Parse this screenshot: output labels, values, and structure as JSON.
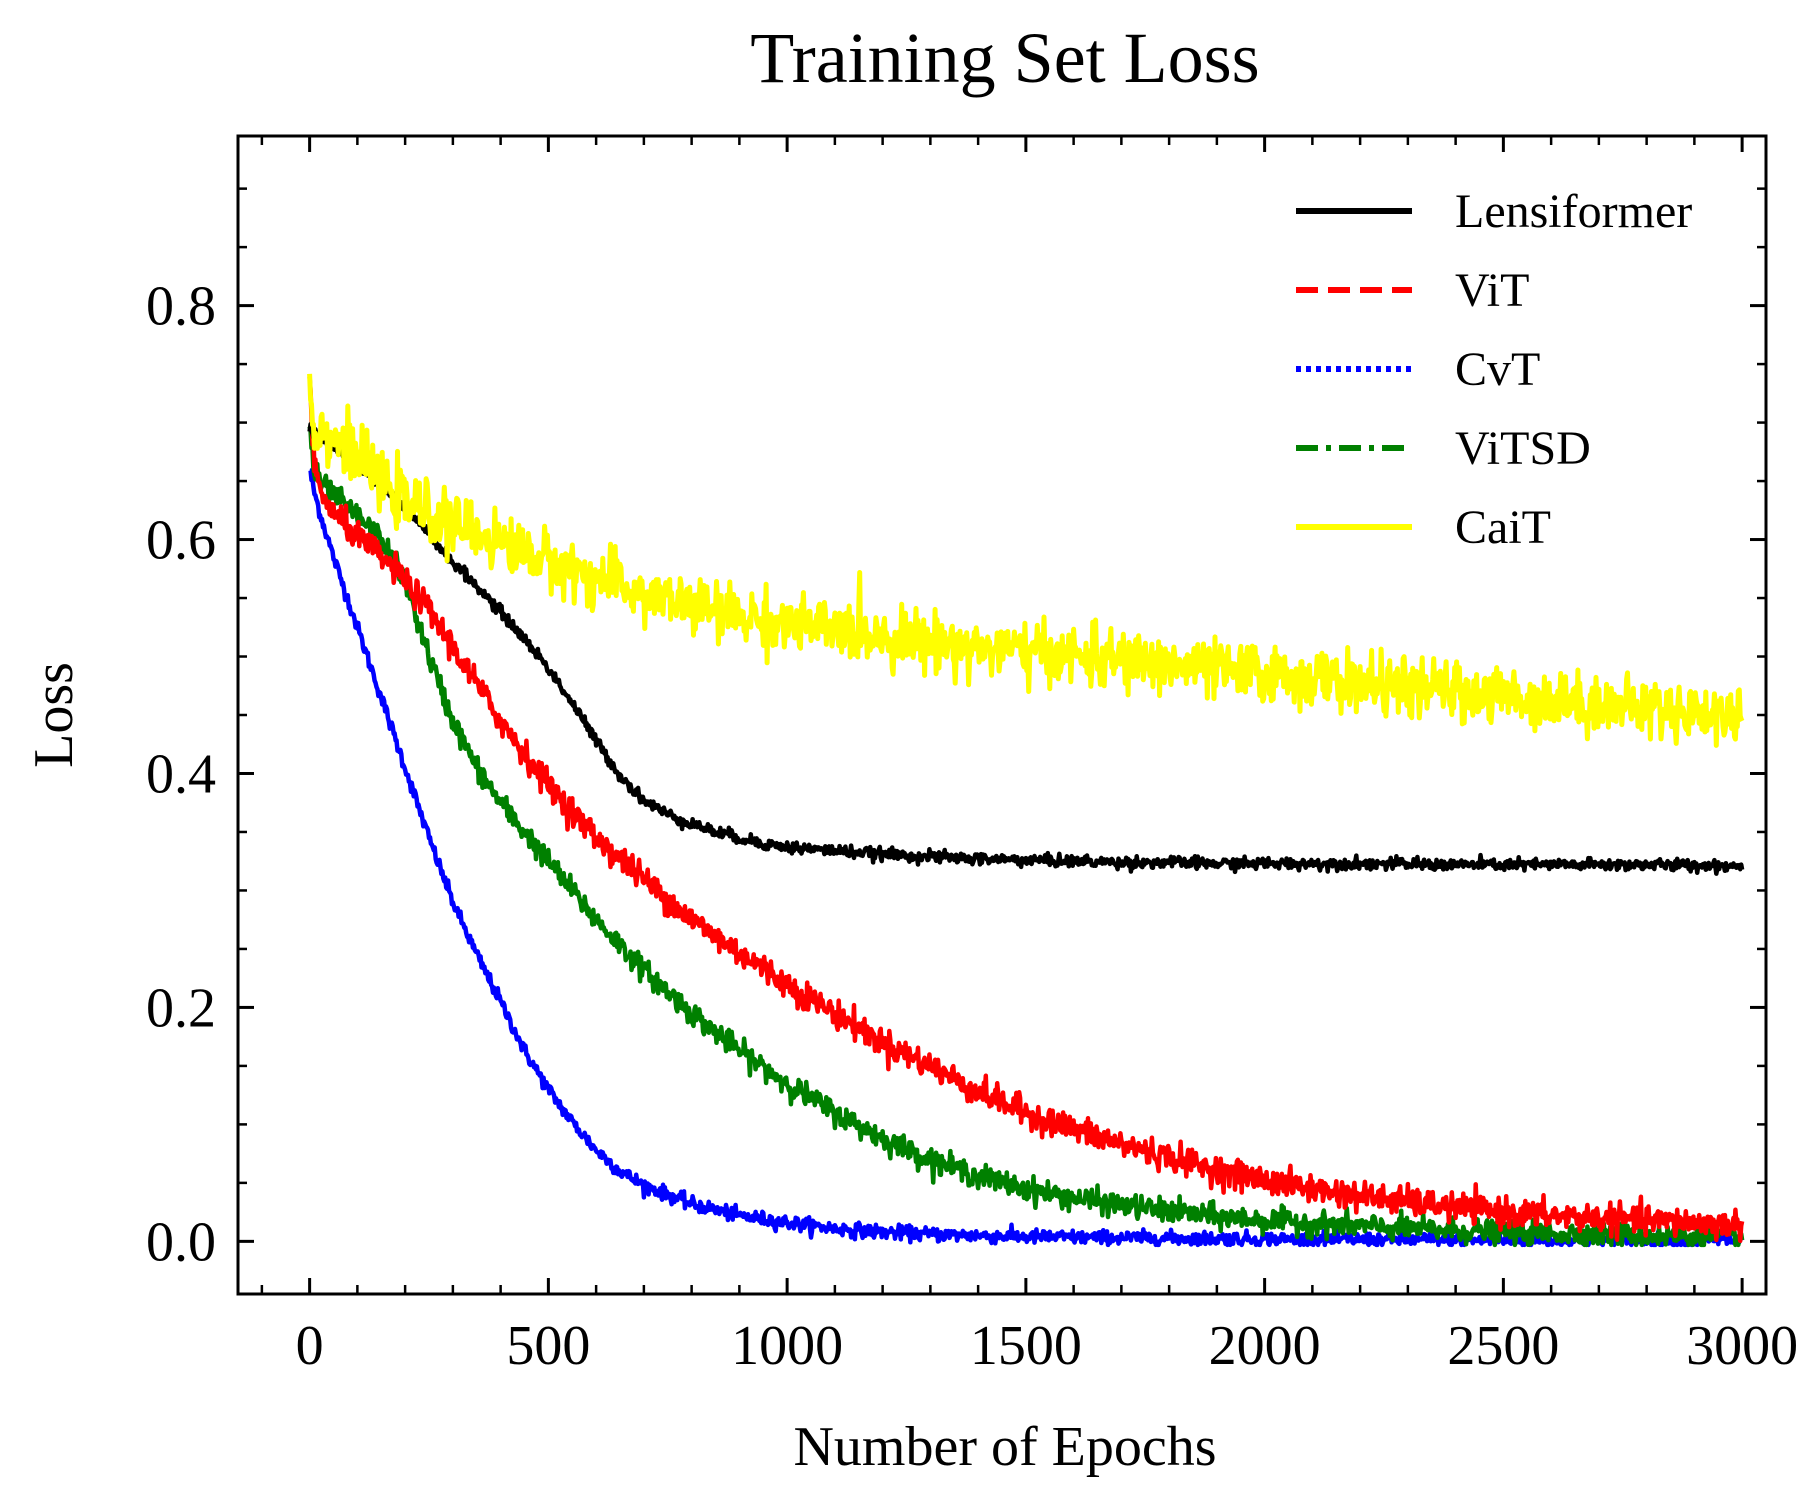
{
  "chart_data": {
    "type": "line",
    "title": "Training Set Loss",
    "xlabel": "Number of Epochs",
    "ylabel": "Loss",
    "xlim": [
      -150,
      3050
    ],
    "ylim": [
      -0.045,
      0.945
    ],
    "xticks": [
      0,
      500,
      1000,
      1500,
      2000,
      2500,
      3000
    ],
    "xtick_labels": [
      "0",
      "500",
      "1000",
      "1500",
      "2000",
      "2500",
      "3000"
    ],
    "yticks": [
      0.0,
      0.2,
      0.4,
      0.6,
      0.8
    ],
    "ytick_labels": [
      "0.0",
      "0.2",
      "0.4",
      "0.6",
      "0.8"
    ],
    "x_minor_step": 100,
    "y_minor_step": 0.05,
    "grid": false,
    "legend_position": "top-right",
    "series": [
      {
        "name": "Lensiformer",
        "color": "#000000",
        "style": "solid",
        "x": [
          0,
          25,
          50,
          100,
          150,
          200,
          250,
          300,
          350,
          400,
          450,
          500,
          550,
          600,
          650,
          700,
          750,
          800,
          850,
          900,
          950,
          1000,
          1100,
          1200,
          1300,
          1400,
          1500,
          1600,
          1700,
          1800,
          1900,
          2000,
          2200,
          2400,
          2600,
          2800,
          3000
        ],
        "y": [
          0.695,
          0.686,
          0.679,
          0.663,
          0.647,
          0.627,
          0.604,
          0.581,
          0.56,
          0.538,
          0.515,
          0.49,
          0.46,
          0.428,
          0.398,
          0.377,
          0.365,
          0.357,
          0.35,
          0.345,
          0.34,
          0.337,
          0.334,
          0.331,
          0.329,
          0.327,
          0.326,
          0.325,
          0.324,
          0.324,
          0.323,
          0.323,
          0.323,
          0.322,
          0.322,
          0.322,
          0.321
        ],
        "noise": 0.0025
      },
      {
        "name": "ViT",
        "color": "#ff0000",
        "style": "dashed",
        "x": [
          0,
          10,
          25,
          50,
          100,
          150,
          200,
          250,
          300,
          400,
          500,
          600,
          700,
          800,
          900,
          1000,
          1100,
          1200,
          1300,
          1400,
          1500,
          1600,
          1700,
          1800,
          1900,
          2000,
          2100,
          2200,
          2300,
          2400,
          2500,
          2600,
          2700,
          2800,
          2900,
          3000
        ],
        "y": [
          0.735,
          0.66,
          0.64,
          0.622,
          0.603,
          0.585,
          0.565,
          0.54,
          0.508,
          0.445,
          0.39,
          0.345,
          0.31,
          0.275,
          0.247,
          0.22,
          0.195,
          0.17,
          0.15,
          0.128,
          0.11,
          0.096,
          0.083,
          0.072,
          0.061,
          0.052,
          0.045,
          0.039,
          0.034,
          0.029,
          0.025,
          0.022,
          0.02,
          0.018,
          0.016,
          0.014
        ],
        "noise": 0.006
      },
      {
        "name": "CvT",
        "color": "#0000ff",
        "style": "dotted",
        "x": [
          0,
          10,
          25,
          50,
          100,
          150,
          200,
          250,
          300,
          350,
          400,
          450,
          500,
          550,
          600,
          650,
          700,
          750,
          800,
          900,
          1000,
          1100,
          1200,
          1300,
          1400,
          1500,
          1700,
          2000,
          2500,
          3000
        ],
        "y": [
          0.66,
          0.64,
          0.618,
          0.585,
          0.525,
          0.465,
          0.405,
          0.345,
          0.29,
          0.245,
          0.205,
          0.163,
          0.13,
          0.102,
          0.078,
          0.06,
          0.048,
          0.04,
          0.032,
          0.022,
          0.016,
          0.011,
          0.008,
          0.006,
          0.005,
          0.004,
          0.003,
          0.002,
          0.001,
          0.001
        ],
        "noise": 0.003
      },
      {
        "name": "ViTSD",
        "color": "#008000",
        "style": "dashdot",
        "x": [
          0,
          10,
          25,
          50,
          100,
          150,
          200,
          250,
          300,
          350,
          400,
          500,
          600,
          700,
          800,
          900,
          1000,
          1100,
          1200,
          1300,
          1400,
          1500,
          1600,
          1700,
          1800,
          1900,
          2000,
          2200,
          2400,
          2600,
          2800,
          3000
        ],
        "y": [
          0.7,
          0.656,
          0.648,
          0.638,
          0.62,
          0.6,
          0.565,
          0.5,
          0.445,
          0.405,
          0.375,
          0.325,
          0.275,
          0.232,
          0.195,
          0.163,
          0.135,
          0.11,
          0.088,
          0.07,
          0.056,
          0.045,
          0.037,
          0.031,
          0.026,
          0.021,
          0.018,
          0.013,
          0.009,
          0.007,
          0.005,
          0.004
        ],
        "noise": 0.005
      },
      {
        "name": "CaiT",
        "color": "#ffff00",
        "style": "solid",
        "x": [
          0,
          10,
          25,
          50,
          100,
          150,
          200,
          300,
          400,
          500,
          600,
          700,
          800,
          900,
          1000,
          1200,
          1400,
          1600,
          1800,
          2000,
          2200,
          2400,
          2600,
          2800,
          3000
        ],
        "y": [
          0.728,
          0.695,
          0.692,
          0.688,
          0.672,
          0.648,
          0.632,
          0.613,
          0.598,
          0.582,
          0.567,
          0.553,
          0.543,
          0.535,
          0.528,
          0.518,
          0.508,
          0.5,
          0.493,
          0.485,
          0.477,
          0.47,
          0.463,
          0.456,
          0.449
        ],
        "noise": 0.012
      }
    ]
  }
}
